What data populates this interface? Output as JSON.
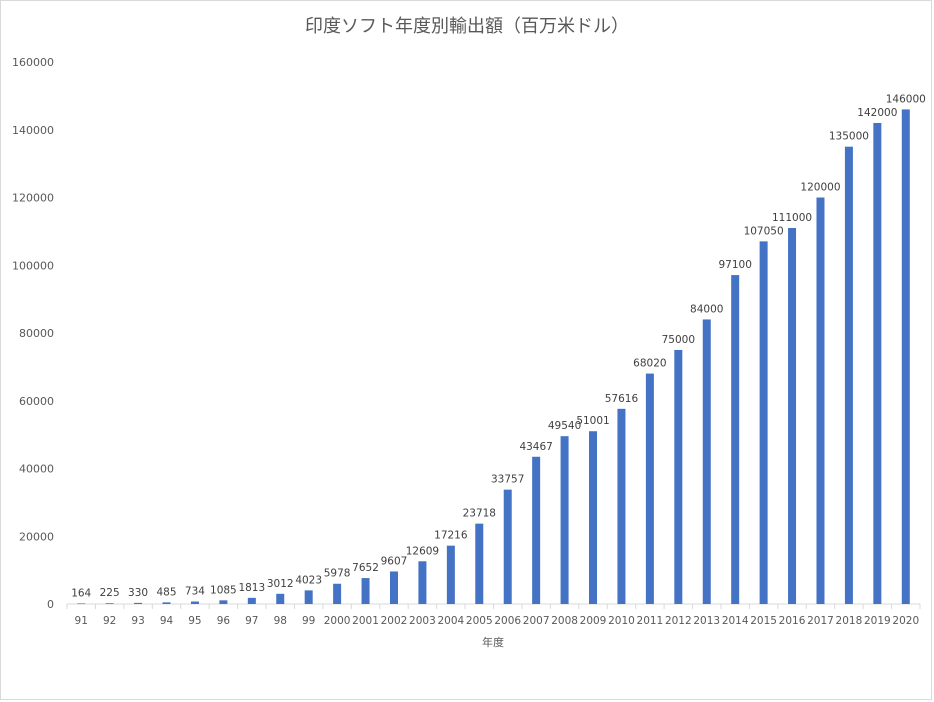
{
  "chart_data": {
    "type": "bar",
    "title": "印度ソフト年度別輸出額（百万米ドル）",
    "xlabel": "年度",
    "ylabel": "",
    "ylim": [
      0,
      160000
    ],
    "yticks": [
      "0",
      "20000",
      "40000",
      "60000",
      "80000",
      "100000",
      "120000",
      "140000",
      "160000"
    ],
    "grid": false,
    "legend": "none",
    "bar_color": "#4472c4",
    "categories": [
      "91",
      "92",
      "93",
      "94",
      "95",
      "96",
      "97",
      "98",
      "99",
      "2000",
      "2001",
      "2002",
      "2003",
      "2004",
      "2005",
      "2006",
      "2007",
      "2008",
      "2009",
      "2010",
      "2011",
      "2012",
      "2013",
      "2014",
      "2015",
      "2016",
      "2017",
      "2018",
      "2019",
      "2020"
    ],
    "values": [
      164,
      225,
      330,
      485,
      734,
      1085,
      1813,
      3012,
      4023,
      5978,
      7652,
      9607,
      12609,
      17216,
      23718,
      33757,
      43467,
      49540,
      51001,
      57616,
      68020,
      75000,
      84000,
      97100,
      107050,
      111000,
      120000,
      135000,
      142000,
      146000
    ],
    "data_labels": [
      "164",
      "225",
      "330",
      "485",
      "734",
      "1085",
      "1813",
      "3012",
      "4023",
      "5978",
      "7652",
      "9607",
      "12609",
      "17216",
      "23718",
      "33757",
      "43467",
      "49540",
      "51001",
      "57616",
      "68020",
      "75000",
      "84000",
      "97100",
      "107050",
      "111000",
      "120000",
      "135000",
      "142000",
      "146000"
    ]
  }
}
